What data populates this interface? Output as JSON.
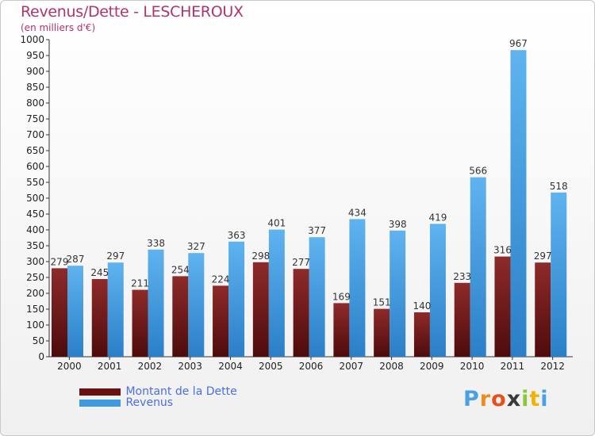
{
  "header": {
    "title": "Revenus/Dette - LESCHEROUX",
    "subtitle": "(en milliers d'€)"
  },
  "chart_data": {
    "type": "bar",
    "categories": [
      "2000",
      "2001",
      "2002",
      "2003",
      "2004",
      "2005",
      "2006",
      "2007",
      "2008",
      "2009",
      "2010",
      "2011",
      "2012"
    ],
    "series": [
      {
        "name": "Montant de la Dette",
        "color": "#7a1c1c",
        "values": [
          279,
          245,
          211,
          254,
          224,
          298,
          277,
          169,
          151,
          140,
          233,
          316,
          297
        ]
      },
      {
        "name": "Revenus",
        "color": "#3f9ae0",
        "values": [
          287,
          297,
          338,
          327,
          363,
          401,
          377,
          434,
          398,
          419,
          566,
          967,
          518
        ]
      }
    ],
    "ylim": [
      0,
      1000
    ],
    "ytick_step": 50,
    "grid": false,
    "legend_position": "bottom-left"
  },
  "logo": {
    "letters": [
      "P",
      "r",
      "o",
      "x",
      "i",
      "t",
      "i"
    ],
    "colors": [
      "#4aa0e0",
      "#f08a1a",
      "#e8501a",
      "#3a3a3a",
      "#8cc63f",
      "#f0b400",
      "#4aa0e0"
    ]
  }
}
